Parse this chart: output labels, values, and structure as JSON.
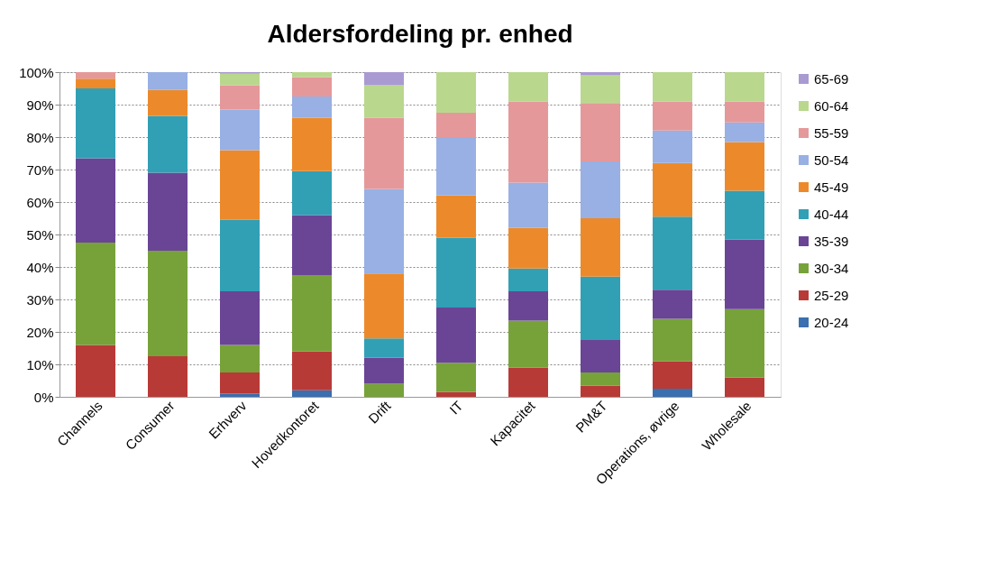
{
  "chart_data": {
    "type": "bar",
    "title": "Aldersfordeling pr. enhed",
    "stacked": true,
    "legend": "right",
    "grid": "y",
    "categories": [
      "Channels",
      "Consumer",
      "Erhverv",
      "Hovedkontoret",
      "Drift",
      "IT",
      "Kapacitet",
      "PM&T",
      "Operations, øvrige",
      "Wholesale"
    ],
    "ylim": [
      0,
      100
    ],
    "yticks": [
      {
        "value": 0,
        "label": "0%"
      },
      {
        "value": 10,
        "label": "10%"
      },
      {
        "value": 20,
        "label": "20%"
      },
      {
        "value": 30,
        "label": "30%"
      },
      {
        "value": 40,
        "label": "40%"
      },
      {
        "value": 50,
        "label": "50%"
      },
      {
        "value": 60,
        "label": "60%"
      },
      {
        "value": 70,
        "label": "70%"
      },
      {
        "value": 80,
        "label": "80%"
      },
      {
        "value": 90,
        "label": "90%"
      },
      {
        "value": 100,
        "label": "100%"
      }
    ],
    "series": [
      {
        "name": "20-24",
        "color": "#3a6fb0",
        "values": [
          0,
          0,
          1,
          2,
          0,
          0,
          0,
          0,
          2.5,
          0
        ]
      },
      {
        "name": "25-29",
        "color": "#b83a37",
        "values": [
          16,
          12.5,
          6.5,
          12,
          0,
          1.5,
          9,
          3.5,
          8.5,
          6
        ]
      },
      {
        "name": "30-34",
        "color": "#77a23a",
        "values": [
          31.5,
          32.5,
          8.5,
          23.5,
          4,
          9,
          14.5,
          4,
          13,
          21
        ]
      },
      {
        "name": "35-39",
        "color": "#6a4596",
        "values": [
          26,
          24,
          16.5,
          18.5,
          8,
          17,
          9,
          10,
          9,
          21.5
        ]
      },
      {
        "name": "40-44",
        "color": "#31a0b5",
        "values": [
          21.5,
          17.5,
          22,
          13.5,
          6,
          21.5,
          7,
          19.5,
          22.5,
          15
        ]
      },
      {
        "name": "45-49",
        "color": "#ec8a2b",
        "values": [
          3,
          8,
          21.5,
          16.5,
          20,
          13,
          12.5,
          18,
          16.5,
          15
        ]
      },
      {
        "name": "50-54",
        "color": "#98b0e3",
        "values": [
          0,
          5.5,
          12.5,
          6.5,
          26,
          18,
          14,
          17.5,
          10,
          6
        ]
      },
      {
        "name": "55-59",
        "color": "#e5989a",
        "values": [
          2,
          0,
          7.5,
          6,
          22,
          7.5,
          25,
          18,
          9,
          6.5
        ]
      },
      {
        "name": "60-64",
        "color": "#b9d88e",
        "values": [
          0,
          0,
          3.5,
          1.5,
          10,
          12.5,
          9,
          8.5,
          9,
          9
        ]
      },
      {
        "name": "65-69",
        "color": "#a99ad1",
        "values": [
          0,
          0,
          0.5,
          0,
          4,
          0,
          0,
          1,
          0,
          0
        ]
      }
    ]
  }
}
